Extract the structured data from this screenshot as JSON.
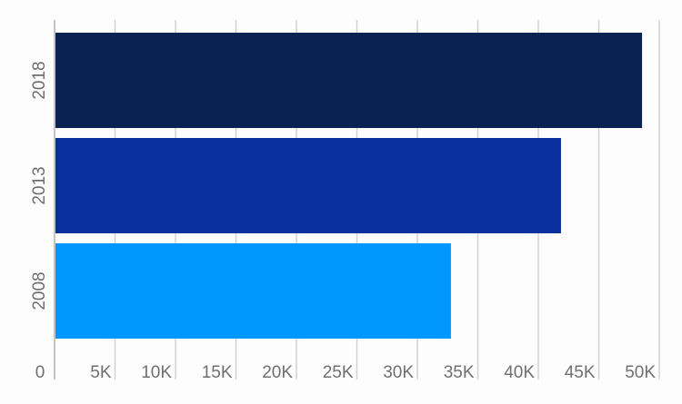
{
  "chart_data": {
    "type": "bar",
    "orientation": "horizontal",
    "categories": [
      "2018",
      "2013",
      "2008"
    ],
    "values": [
      48500,
      41800,
      32700
    ],
    "colors": [
      "#0a2251",
      "#0a2f9e",
      "#0098fe"
    ],
    "xlim": [
      0,
      50000
    ],
    "x_ticks": [
      0,
      5000,
      10000,
      15000,
      20000,
      25000,
      30000,
      35000,
      40000,
      45000,
      50000
    ],
    "x_tick_labels": [
      "0",
      "5K",
      "10K",
      "15K",
      "20K",
      "25K",
      "30K",
      "35K",
      "40K",
      "45K",
      "50K"
    ],
    "grid": true,
    "legend": "none"
  }
}
